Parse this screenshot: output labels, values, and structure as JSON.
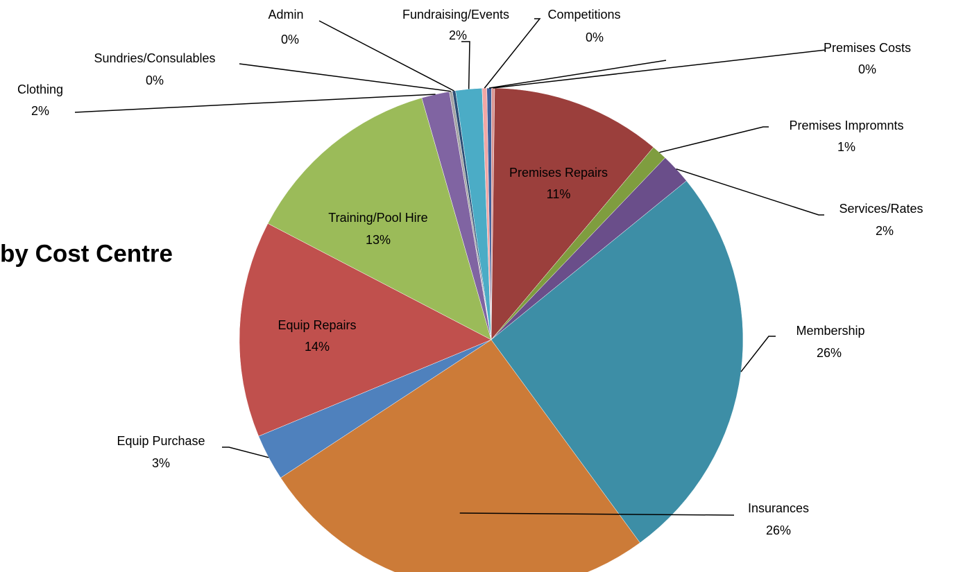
{
  "chart_data": {
    "type": "pie",
    "title": "by Cost Centre",
    "categories": [
      null,
      "Premises Costs",
      "Premises Repairs",
      "Premises Impromnts",
      "Services/Rates",
      "Membership",
      "Insurances",
      "Equip Purchase",
      "Equip Repairs",
      "Training/Pool Hire",
      "Clothing",
      "Sundries/Consulables",
      "Admin",
      "Fundraising/Events",
      "Competitions"
    ],
    "values": [
      0.3,
      0.2,
      11,
      1,
      2,
      26,
      26,
      3,
      14,
      13,
      1.8,
      0.2,
      0.2,
      1.7,
      0.3
    ],
    "value_labels": [
      null,
      "0%",
      "11%",
      "1%",
      "2%",
      "26%",
      "26%",
      "3%",
      "14%",
      "13%",
      "2%",
      "0%",
      "0%",
      "2%",
      "0%"
    ],
    "colors": [
      "#3F5F9A",
      "#D99694",
      "#9B3F3C",
      "#7F9D3F",
      "#6A4E8A",
      "#3D8EA6",
      "#CC7B38",
      "#4F81BD",
      "#C0504D",
      "#9BBB59",
      "#8064A2",
      "#A5A5A5",
      "#2C4D75",
      "#4BACC6",
      "#F2A7A5"
    ]
  }
}
